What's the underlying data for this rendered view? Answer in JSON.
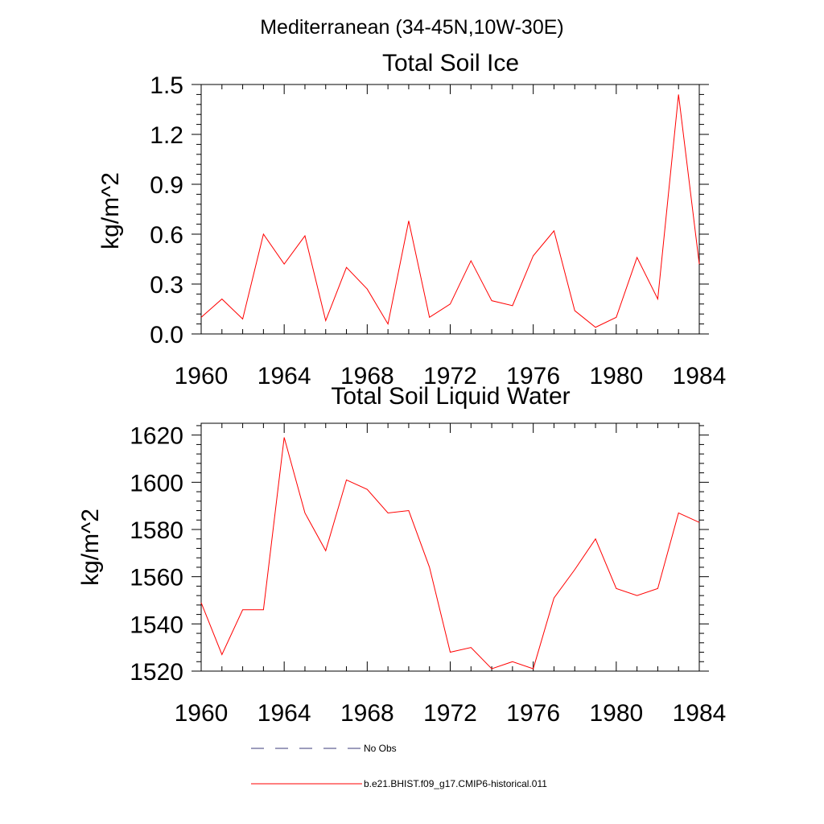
{
  "figure": {
    "main_title": "Mediterranean (34-45N,10W-30E)",
    "legend": [
      {
        "label": "No Obs",
        "color": "#3b3b7a",
        "dash": "dashed"
      },
      {
        "label": "b.e21.BHIST.f09_g17.CMIP6-historical.011",
        "color": "#ff0000",
        "dash": "solid"
      }
    ]
  },
  "chart_data": [
    {
      "type": "line",
      "title": "Total Soil Ice",
      "ylabel": "kg/m^2",
      "xlabel": "",
      "xlim": [
        1960,
        1984
      ],
      "ylim": [
        0,
        1.5
      ],
      "xticks": [
        1960,
        1964,
        1968,
        1972,
        1976,
        1980,
        1984
      ],
      "xtick_labels": [
        "1960",
        "1964",
        "1968",
        "1972",
        "1976",
        "1980",
        "1984"
      ],
      "yticks": [
        0,
        0.3,
        0.6,
        0.9,
        1.2,
        1.5
      ],
      "ytick_labels": [
        "0.0",
        "0.3",
        "0.6",
        "0.9",
        "1.2",
        "1.5"
      ],
      "x": [
        1960,
        1961,
        1962,
        1963,
        1964,
        1965,
        1966,
        1967,
        1968,
        1969,
        1970,
        1971,
        1972,
        1973,
        1974,
        1975,
        1976,
        1977,
        1978,
        1979,
        1980,
        1981,
        1982,
        1983,
        1984
      ],
      "series": [
        {
          "name": "b.e21.BHIST.f09_g17.CMIP6-historical.011",
          "color": "#ff0000",
          "values": [
            0.1,
            0.21,
            0.09,
            0.6,
            0.42,
            0.59,
            0.08,
            0.4,
            0.27,
            0.06,
            0.68,
            0.1,
            0.18,
            0.44,
            0.2,
            0.17,
            0.47,
            0.62,
            0.14,
            0.04,
            0.1,
            0.46,
            0.21,
            1.44,
            0.42
          ]
        }
      ]
    },
    {
      "type": "line",
      "title": "Total Soil Liquid Water",
      "ylabel": "kg/m^2",
      "xlabel": "",
      "xlim": [
        1960,
        1984
      ],
      "ylim": [
        1520,
        1625
      ],
      "xticks": [
        1960,
        1964,
        1968,
        1972,
        1976,
        1980,
        1984
      ],
      "xtick_labels": [
        "1960",
        "1964",
        "1968",
        "1972",
        "1976",
        "1980",
        "1984"
      ],
      "yticks": [
        1520,
        1540,
        1560,
        1580,
        1600,
        1620
      ],
      "ytick_labels": [
        "1520",
        "1540",
        "1560",
        "1580",
        "1600",
        "1620"
      ],
      "x": [
        1960,
        1961,
        1962,
        1963,
        1964,
        1965,
        1966,
        1967,
        1968,
        1969,
        1970,
        1971,
        1972,
        1973,
        1974,
        1975,
        1976,
        1977,
        1978,
        1979,
        1980,
        1981,
        1982,
        1983,
        1984
      ],
      "series": [
        {
          "name": "b.e21.BHIST.f09_g17.CMIP6-historical.011",
          "color": "#ff0000",
          "values": [
            1549,
            1527,
            1546,
            1546,
            1619,
            1587,
            1571,
            1601,
            1597,
            1587,
            1588,
            1564,
            1528,
            1530,
            1521,
            1524,
            1521,
            1551,
            1563,
            1576,
            1555,
            1552,
            1555,
            1587,
            1583
          ]
        }
      ]
    }
  ]
}
